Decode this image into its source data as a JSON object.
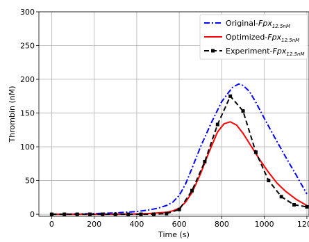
{
  "chart_data": {
    "type": "line",
    "title": "",
    "xlabel": "Time (s)",
    "ylabel": "Thrombin (nM)",
    "xlim": [
      -60,
      1210
    ],
    "ylim": [
      -3,
      300
    ],
    "xticks": [
      0,
      200,
      400,
      600,
      800,
      1000,
      1200
    ],
    "yticks": [
      0,
      50,
      100,
      150,
      200,
      250,
      300
    ],
    "grid": true,
    "legend_position": "top-right",
    "colors": {
      "original": "#0000ff",
      "optimized": "#ff0000",
      "experiment": "#000000"
    },
    "series": [
      {
        "name": "Original-Fpx",
        "name_main": "Original-",
        "name_var": "Fpx",
        "name_sub": "12.5nM",
        "style": "dashdot",
        "x": [
          0,
          100,
          200,
          300,
          400,
          450,
          500,
          540,
          570,
          600,
          630,
          660,
          700,
          750,
          800,
          850,
          880,
          900,
          930,
          960,
          1000,
          1050,
          1100,
          1150,
          1200
        ],
        "y": [
          0,
          0.4,
          1,
          2,
          4,
          6,
          9,
          13,
          18,
          28,
          45,
          68,
          100,
          135,
          167,
          188,
          193,
          191,
          182,
          166,
          142,
          113,
          85,
          58,
          30
        ]
      },
      {
        "name": "Optimized-Fpx",
        "name_main": "Optimized-",
        "name_var": "Fpx",
        "name_sub": "12.5nM",
        "style": "solid",
        "x": [
          0,
          100,
          200,
          300,
          400,
          450,
          500,
          540,
          570,
          600,
          630,
          660,
          700,
          740,
          780,
          810,
          840,
          870,
          900,
          940,
          980,
          1020,
          1060,
          1100,
          1150,
          1200
        ],
        "y": [
          0,
          0,
          0,
          0,
          0.5,
          1,
          2,
          3,
          5,
          9,
          18,
          32,
          60,
          92,
          122,
          134,
          137,
          132,
          120,
          100,
          80,
          62,
          46,
          34,
          22,
          13
        ]
      },
      {
        "name": "Experiment-Fpx",
        "name_main": "Experiment-",
        "name_var": "Fpx",
        "name_sub": "12.5nM",
        "style": "dashed",
        "marker": "square",
        "x": [
          0,
          60,
          120,
          180,
          240,
          300,
          360,
          420,
          480,
          540,
          600,
          660,
          720,
          780,
          840,
          900,
          960,
          1020,
          1080,
          1140,
          1200
        ],
        "y": [
          0,
          0,
          0,
          0,
          0,
          0,
          0,
          0,
          0,
          1,
          7,
          35,
          78,
          133,
          175,
          153,
          92,
          50,
          26,
          14,
          11
        ]
      }
    ]
  }
}
